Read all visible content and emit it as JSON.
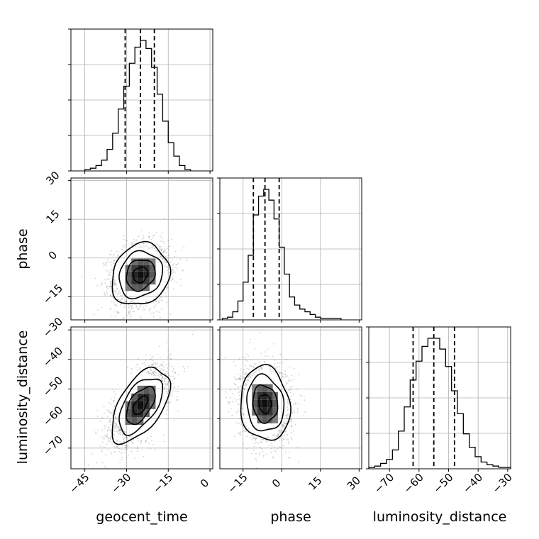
{
  "chart_data": {
    "type": "scatter",
    "title": "",
    "parameters": [
      "geocent_time",
      "phase",
      "luminosity_distance"
    ],
    "axis_labels": {
      "geocent_time": "geocent_time",
      "phase": "phase",
      "luminosity_distance": "luminosity_distance"
    },
    "ranges": {
      "geocent_time": [
        -50,
        1
      ],
      "phase": [
        -24,
        31
      ],
      "luminosity_distance": [
        -77,
        -29
      ]
    },
    "ticks": {
      "geocent_time": {
        "values": [
          -45,
          -30,
          -15,
          0
        ],
        "labels": [
          "−45",
          "−30",
          "−15",
          "0"
        ]
      },
      "phase": {
        "values": [
          -15,
          0,
          15,
          30
        ],
        "labels": [
          "−15",
          "0",
          "15",
          "30"
        ]
      },
      "luminosity_distance": {
        "values": [
          -70,
          -60,
          -50,
          -40,
          -30
        ],
        "labels": [
          "−70",
          "−60",
          "−50",
          "−40",
          "−30"
        ]
      }
    },
    "quantiles": {
      "geocent_time": [
        -30.5,
        -25.0,
        -20.0
      ],
      "phase": [
        -11.0,
        -6.5,
        -1.0
      ],
      "luminosity_distance": [
        -62.0,
        -55.0,
        -48.0
      ]
    },
    "histograms": {
      "geocent_time": {
        "edges": [
          -45,
          -43,
          -41,
          -39,
          -37,
          -35,
          -33,
          -31,
          -29,
          -27,
          -25,
          -23,
          -21,
          -19,
          -17,
          -15,
          -13,
          -11,
          -9,
          -7
        ],
        "counts": [
          1,
          2,
          4,
          8,
          16,
          28,
          46,
          63,
          80,
          92,
          97,
          91,
          77,
          57,
          37,
          21,
          11,
          4,
          1
        ]
      },
      "phase": {
        "edges": [
          -23,
          -21,
          -19,
          -17,
          -15,
          -13,
          -11,
          -9,
          -7,
          -5,
          -3,
          -1,
          1,
          3,
          5,
          7,
          9,
          11,
          13,
          15,
          17,
          19,
          21,
          23
        ],
        "counts": [
          1,
          2,
          6,
          14,
          28,
          48,
          78,
          92,
          97,
          89,
          75,
          54,
          34,
          17,
          11,
          8,
          6,
          4,
          2,
          1,
          1,
          1,
          1
        ]
      },
      "luminosity_distance": {
        "edges": [
          -77,
          -75,
          -73,
          -71,
          -69,
          -67,
          -65,
          -63,
          -61,
          -59,
          -57,
          -55,
          -53,
          -51,
          -49,
          -47,
          -45,
          -43,
          -41,
          -39,
          -37,
          -35,
          -33,
          -31,
          -29
        ],
        "counts": [
          1,
          2,
          4,
          7,
          14,
          28,
          46,
          66,
          80,
          91,
          97,
          97,
          89,
          76,
          58,
          41,
          26,
          16,
          9,
          5,
          3,
          2,
          1,
          1
        ]
      }
    },
    "joint": {
      "phase_vs_geocent_time": {
        "x_param": "geocent_time",
        "y_param": "phase",
        "mean": [
          -25,
          -6.5
        ],
        "sd": [
          5.2,
          6.0
        ],
        "corr": 0.15
      },
      "luminosity_distance_vs_geocent_time": {
        "x_param": "geocent_time",
        "y_param": "luminosity_distance",
        "mean": [
          -25,
          -55.5
        ],
        "sd": [
          5.2,
          6.3
        ],
        "corr": 0.55
      },
      "luminosity_distance_vs_phase": {
        "x_param": "phase",
        "y_param": "luminosity_distance",
        "mean": [
          -6.5,
          -55
        ],
        "sd": [
          4.8,
          6.3
        ],
        "corr": -0.1
      }
    },
    "contour_levels": "0.5, 1.0, 1.5, 2.0 sigma",
    "grid": true
  }
}
